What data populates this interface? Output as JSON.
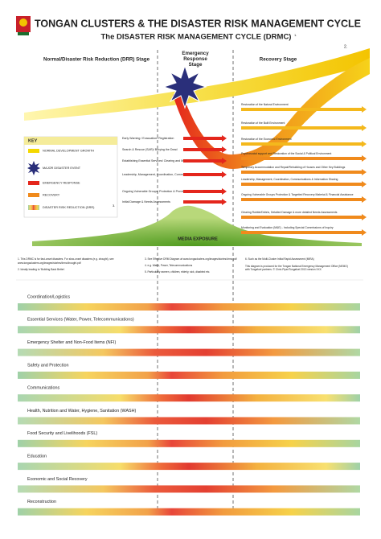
{
  "header": {
    "title": "TONGAN CLUSTERS & THE DISASTER RISK MANAGEMENT CYCLE",
    "subtitle": "The DISASTER RISK MANAGEMENT CYCLE (DRMC)",
    "subtitle_note": "1.",
    "corner_note": "2."
  },
  "stages": [
    "Normal/Disaster Risk Reduction (DRR) Stage",
    "Emergency Response Stage",
    "Recovery Stage"
  ],
  "key": {
    "title": "KEY",
    "items": [
      "NORMAL DEVELOPMENT GROWTH",
      "MAJOR DISASTER EVENT",
      "EMERGENCY RESPONSE",
      "RECOVERY",
      "DISASTER RISK REDUCTION (DRR)"
    ]
  },
  "key_note": "3.",
  "emergency_actions": [
    "Early Warning / Evacuation/ Registration",
    "Search & Rescue (SAR)/ Burying the Dead",
    "Establishing Essential Services/ Clearing and Managing Logistical Routes",
    "Leadership, Management, Coordination, Communications & Information Sharing",
    "Ongoing Vulnerable Groups' Protection & Provision of Humanitarian Assistance",
    "Initial Damage & Needs Assessments"
  ],
  "recovery_actions": [
    "Restoration of the Natural Environment",
    "Restoration of the Built Environment",
    "Restoration of the Economic Environment",
    "Psychosocial support and Restoration of the Social & Political Environment",
    "Temporary Accommodation and Repair/Rebuilding of Houses and Other Key Buildings",
    "Leadership, Management, Coordination, Communications & Information Sharing",
    "Ongoing Vulnerable Groups Protection & Targetted Recovery Material & Financial Assistance",
    "Clearing Rubble/Debris, Detailed Damage & more detailed Needs Assessments",
    "Monitoring and Evaluation (M&E) - Including Special Commissions of Inquiry"
  ],
  "media": "MEDIA EXPOSURE",
  "footnotes": [
    "1. This DRMC is for fast-onset disasters. For slow-onset disasters (e.g. drought), see",
    "www.tongaclusters.org/images/stories/drmc/drought.pdf",
    "2. Ideally leading to 'Building Back Better'.",
    "3. See Effective DRM Diagram at www.tongaclusters.org/images/stories/drmc.pdf",
    "4. e.g. Water, Power, Telecommunications",
    "5. Particularly women, children, elderly, sick, disabled etc.",
    "6. Such as the Multi-Cluster Initial Rapid Assessment (MIRA)",
    "This diagram is produced for the Tongan National Emergency Management Office (NEMO)",
    "with Tongafuel partners. © Chris Piper/Tongafuel 2013 version XXX"
  ],
  "clusters": [
    "Coordination/Logistics",
    "Essential Services (Water, Power, Telecommunications)",
    "Emergency Shelter and Non-Food Items (NFI)",
    "Safety and Protection",
    "Communications",
    "Health, Nutrition and Water, Hygiene, Sanitation (WASH)",
    "Food Security and Livelihoods (FSL)",
    "Education",
    "Economic and Social Recovery",
    "Reconstruction"
  ]
}
